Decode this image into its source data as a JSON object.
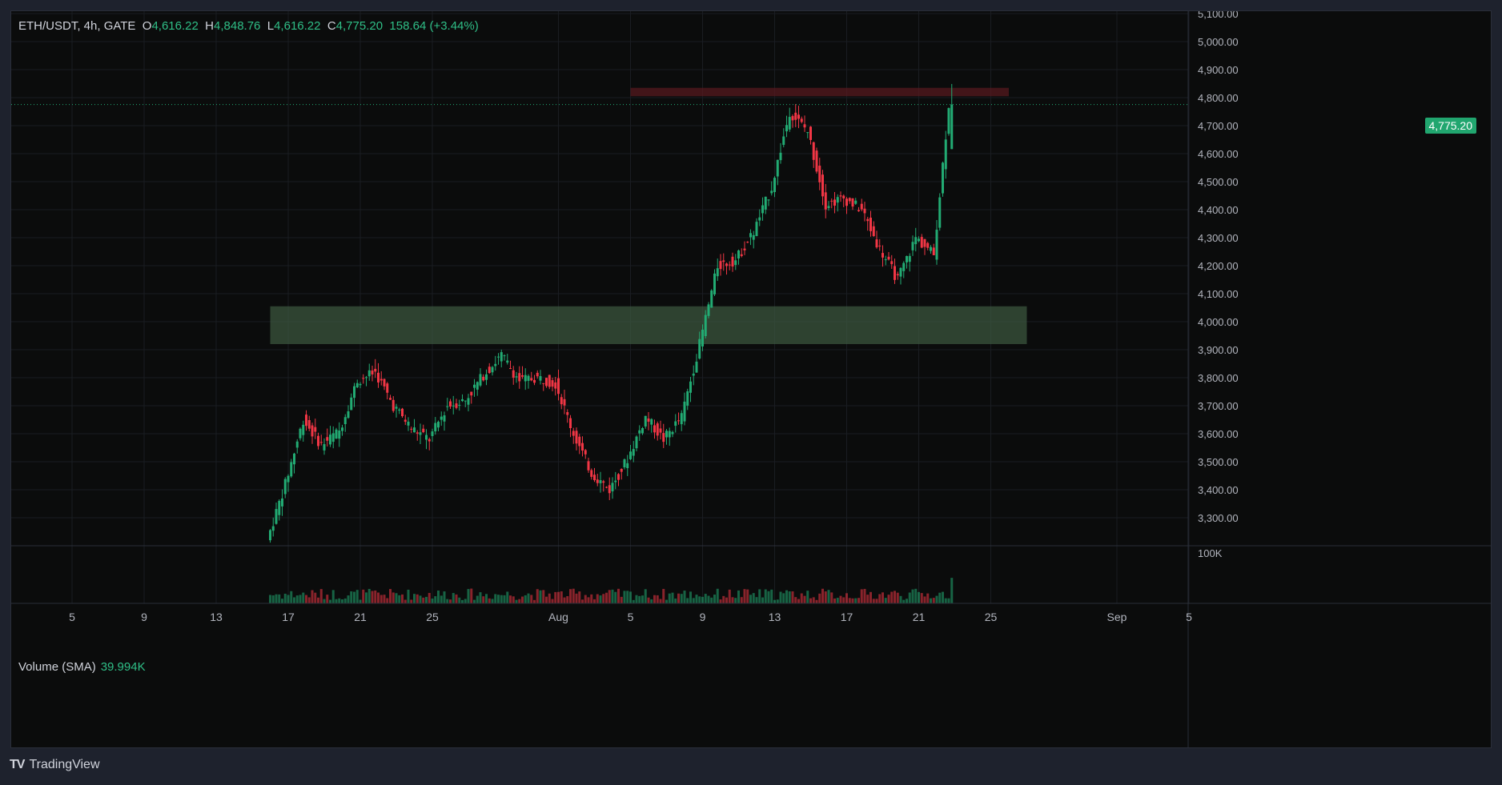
{
  "header": {
    "symbol": "ETH/USDT, 4h, GATE",
    "open_label": "O",
    "open": "4,616.22",
    "high_label": "H",
    "high": "4,848.76",
    "low_label": "L",
    "low": "4,616.22",
    "close_label": "C",
    "close": "4,775.20",
    "change": "158.64 (+3.44%)"
  },
  "volume": {
    "label": "Volume (SMA)",
    "value": "39.994K",
    "axis_label": "100K"
  },
  "last_price_tag": "4,775.20",
  "branding": {
    "logo": "TV",
    "name": "TradingView"
  },
  "colors": {
    "up": "#22ab73",
    "down": "#f23645",
    "support_zone": "#3d5a40",
    "resistance_zone": "#5a1a20",
    "background": "#0b0c0c"
  },
  "chart_data": {
    "type": "candlestick",
    "symbol": "ETH/USDT",
    "interval": "4h",
    "exchange": "GATE",
    "y_ticks": [
      "5,100.00",
      "5,000.00",
      "4,900.00",
      "4,800.00",
      "4,700.00",
      "4,600.00",
      "4,500.00",
      "4,400.00",
      "4,300.00",
      "4,200.00",
      "4,100.00",
      "4,000.00",
      "3,900.00",
      "3,800.00",
      "3,700.00",
      "3,600.00",
      "3,500.00",
      "3,400.00",
      "3,300.00"
    ],
    "y_values": [
      5100,
      5000,
      4900,
      4800,
      4700,
      4600,
      4500,
      4400,
      4300,
      4200,
      4100,
      4000,
      3900,
      3800,
      3700,
      3600,
      3500,
      3400,
      3300
    ],
    "x_ticks": [
      "5",
      "9",
      "13",
      "17",
      "21",
      "25",
      "Aug",
      "5",
      "9",
      "13",
      "17",
      "21",
      "25",
      "Sep",
      "5"
    ],
    "ylim": [
      3200,
      5100
    ],
    "zones": [
      {
        "name": "resistance",
        "low": 4805,
        "high": 4835,
        "from": "Aug 5",
        "to": "Aug 26"
      },
      {
        "name": "support",
        "low": 3920,
        "high": 4055,
        "from": "Jul 16",
        "to": "Aug 27"
      }
    ],
    "last_close": 4775.2,
    "anchors": [
      [
        "Jul 16",
        3220
      ],
      [
        "Jul 17",
        3420
      ],
      [
        "Jul 18",
        3650
      ],
      [
        "Jul 19",
        3560
      ],
      [
        "Jul 20",
        3610
      ],
      [
        "Jul 21",
        3790
      ],
      [
        "Jul 22",
        3820
      ],
      [
        "Jul 23",
        3700
      ],
      [
        "Jul 24",
        3620
      ],
      [
        "Jul 25",
        3580
      ],
      [
        "Jul 26",
        3700
      ],
      [
        "Jul 27",
        3720
      ],
      [
        "Jul 28",
        3810
      ],
      [
        "Jul 29",
        3880
      ],
      [
        "Jul 30",
        3790
      ],
      [
        "Jul 31",
        3800
      ],
      [
        "Aug 1",
        3780
      ],
      [
        "Aug 2",
        3600
      ],
      [
        "Aug 3",
        3460
      ],
      [
        "Aug 4",
        3400
      ],
      [
        "Aug 5",
        3510
      ],
      [
        "Aug 6",
        3660
      ],
      [
        "Aug 7",
        3580
      ],
      [
        "Aug 8",
        3660
      ],
      [
        "Aug 9",
        3920
      ],
      [
        "Aug 10",
        4200
      ],
      [
        "Aug 11",
        4220
      ],
      [
        "Aug 12",
        4320
      ],
      [
        "Aug 13",
        4480
      ],
      [
        "Aug 14",
        4750
      ],
      [
        "Aug 15",
        4680
      ],
      [
        "Aug 16",
        4420
      ],
      [
        "Aug 17",
        4440
      ],
      [
        "Aug 18",
        4400
      ],
      [
        "Aug 19",
        4260
      ],
      [
        "Aug 20",
        4150
      ],
      [
        "Aug 21",
        4300
      ],
      [
        "Aug 22",
        4240
      ],
      [
        "Aug 22 20:00",
        4775.2
      ]
    ],
    "volume_axis": {
      "ticks": [
        "100K"
      ],
      "ylim": [
        0,
        140000
      ]
    }
  }
}
